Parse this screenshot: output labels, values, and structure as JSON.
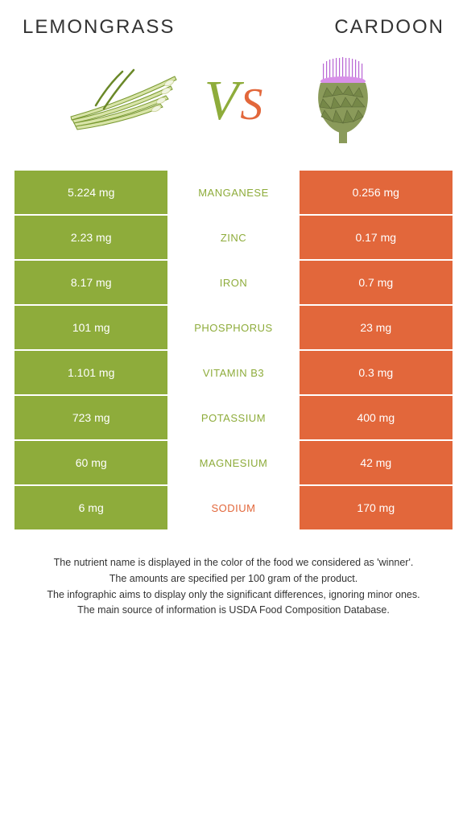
{
  "titles": {
    "left": "Lemongrass",
    "right": "Cardoon"
  },
  "vs": {
    "v": "V",
    "s": "S"
  },
  "colors": {
    "left_bg": "#8eac3b",
    "right_bg": "#e2673b",
    "left_text": "#8eac3b",
    "right_text": "#e2673b"
  },
  "rows": [
    {
      "left": "5.224 mg",
      "center": "Manganese",
      "right": "0.256 mg",
      "winner": "left"
    },
    {
      "left": "2.23 mg",
      "center": "Zinc",
      "right": "0.17 mg",
      "winner": "left"
    },
    {
      "left": "8.17 mg",
      "center": "Iron",
      "right": "0.7 mg",
      "winner": "left"
    },
    {
      "left": "101 mg",
      "center": "Phosphorus",
      "right": "23 mg",
      "winner": "left"
    },
    {
      "left": "1.101 mg",
      "center": "Vitamin B3",
      "right": "0.3 mg",
      "winner": "left"
    },
    {
      "left": "723 mg",
      "center": "Potassium",
      "right": "400 mg",
      "winner": "left"
    },
    {
      "left": "60 mg",
      "center": "Magnesium",
      "right": "42 mg",
      "winner": "left"
    },
    {
      "left": "6 mg",
      "center": "Sodium",
      "right": "170 mg",
      "winner": "right"
    }
  ],
  "footnotes": [
    "The nutrient name is displayed in the color of the food we considered as 'winner'.",
    "The amounts are specified per 100 gram of the product.",
    "The infographic aims to display only the significant differences, ignoring minor ones.",
    "The main source of information is USDA Food Composition Database."
  ]
}
